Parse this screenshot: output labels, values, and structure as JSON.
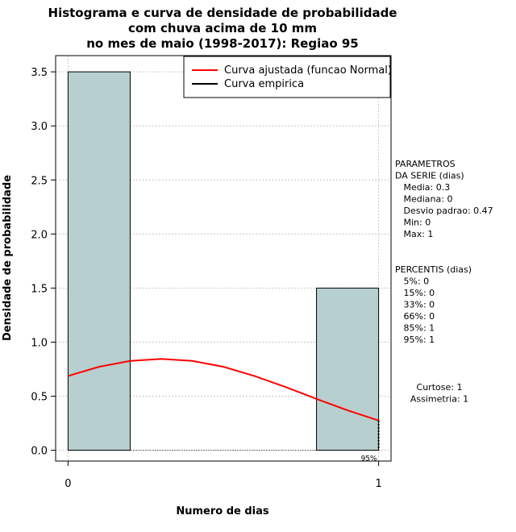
{
  "chart_data": {
    "type": "bar",
    "title_lines": [
      "Histograma e curva de densidade de probabilidade",
      "com chuva acima de 10 mm",
      "no mes de maio (1998-2017): Regiao 95"
    ],
    "xlabel": "Numero de dias",
    "ylabel": "Densidade de probabilidade",
    "xlim": [
      -0.04,
      1.04
    ],
    "ylim": [
      -0.1,
      3.65
    ],
    "xticks": [
      0,
      1
    ],
    "yticks": [
      0.0,
      0.5,
      1.0,
      1.5,
      2.0,
      2.5,
      3.0,
      3.5
    ],
    "ytick_labels": [
      "0.0",
      "0.5",
      "1.0",
      "1.5",
      "2.0",
      "2.5",
      "3.0",
      "3.5"
    ],
    "grid": true,
    "bars": [
      {
        "x0": 0.0,
        "x1": 0.2,
        "value": 3.5
      },
      {
        "x0": 0.8,
        "x1": 1.0,
        "value": 1.5
      }
    ],
    "bar_color": "#b7cfcf",
    "series": [
      {
        "name": "Curva ajustada (funcao Normal)",
        "color": "#ff0000",
        "x": [
          0.0,
          0.1,
          0.2,
          0.3,
          0.4,
          0.5,
          0.6,
          0.7,
          0.8,
          0.9,
          1.0
        ],
        "values": [
          0.687,
          0.772,
          0.826,
          0.845,
          0.826,
          0.772,
          0.687,
          0.585,
          0.475,
          0.369,
          0.275
        ]
      },
      {
        "name": "Curva empirica",
        "color": "#000000",
        "x": [],
        "values": []
      }
    ],
    "legend_position": "top-right",
    "percentile_marker": {
      "x": 1.0,
      "label": "95%"
    },
    "side_panel": {
      "params_lines": [
        "PARAMETROS",
        "DA SERIE (dias)",
        "   Media: 0.3",
        "   Mediana: 0",
        "   Desvio padrao: 0.47",
        "   Min: 0",
        "   Max: 1"
      ],
      "percentis_lines": [
        "PERCENTIS (dias)",
        "   5%: 0",
        "   15%: 0",
        "   33%: 0",
        "   66%: 0",
        "   85%: 1",
        "   95%: 1"
      ],
      "stats_lines": [
        "Curtose: 1",
        "Assimetria: 1"
      ]
    }
  }
}
